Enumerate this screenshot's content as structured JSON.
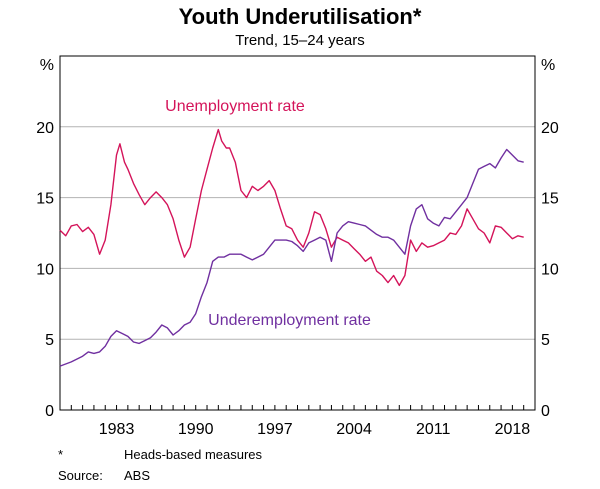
{
  "chart_data": {
    "type": "line",
    "title": "Youth Underutilisation*",
    "subtitle": "Trend, 15–24 years",
    "ylabel_left": "%",
    "ylabel_right": "%",
    "ylim": [
      0,
      25
    ],
    "yticks": [
      0,
      5,
      10,
      15,
      20
    ],
    "xlim": [
      1978,
      2020
    ],
    "xticks": [
      1983,
      1990,
      1997,
      2004,
      2011,
      2018
    ],
    "grid": true,
    "series": [
      {
        "name": "Unemployment rate",
        "color": "#d4145a",
        "x": [
          1978.0,
          1978.5,
          1979.0,
          1979.5,
          1980.0,
          1980.5,
          1981.0,
          1981.5,
          1982.0,
          1982.5,
          1983.0,
          1983.3,
          1983.7,
          1984.0,
          1984.5,
          1985.0,
          1985.5,
          1986.0,
          1986.5,
          1987.0,
          1987.5,
          1988.0,
          1988.5,
          1989.0,
          1989.5,
          1990.0,
          1990.5,
          1991.0,
          1991.5,
          1992.0,
          1992.3,
          1992.7,
          1993.0,
          1993.5,
          1994.0,
          1994.5,
          1995.0,
          1995.5,
          1996.0,
          1996.5,
          1997.0,
          1997.5,
          1998.0,
          1998.5,
          1999.0,
          1999.5,
          2000.0,
          2000.5,
          2001.0,
          2001.5,
          2002.0,
          2002.5,
          2003.0,
          2003.5,
          2004.0,
          2004.5,
          2005.0,
          2005.5,
          2006.0,
          2006.5,
          2007.0,
          2007.5,
          2008.0,
          2008.5,
          2009.0,
          2009.5,
          2010.0,
          2010.5,
          2011.0,
          2011.5,
          2012.0,
          2012.5,
          2013.0,
          2013.5,
          2014.0,
          2014.5,
          2015.0,
          2015.5,
          2016.0,
          2016.5,
          2017.0,
          2017.5,
          2018.0,
          2018.5,
          2019.0
        ],
        "values": [
          12.7,
          12.3,
          13.0,
          13.1,
          12.6,
          12.9,
          12.4,
          11.0,
          12.0,
          14.5,
          18.0,
          18.8,
          17.5,
          17.0,
          16.0,
          15.2,
          14.5,
          15.0,
          15.4,
          15.0,
          14.5,
          13.5,
          12.0,
          10.8,
          11.5,
          13.5,
          15.5,
          17.0,
          18.5,
          19.8,
          19.0,
          18.5,
          18.5,
          17.5,
          15.5,
          15.0,
          15.8,
          15.5,
          15.8,
          16.2,
          15.5,
          14.2,
          13.0,
          12.8,
          12.0,
          11.5,
          12.5,
          14.0,
          13.8,
          12.8,
          11.5,
          12.2,
          12.0,
          11.8,
          11.4,
          11.0,
          10.5,
          10.8,
          9.8,
          9.5,
          9.0,
          9.5,
          8.8,
          9.5,
          12.0,
          11.2,
          11.8,
          11.5,
          11.6,
          11.8,
          12.0,
          12.5,
          12.4,
          13.0,
          14.2,
          13.5,
          12.8,
          12.5,
          11.8,
          13.0,
          12.9,
          12.5,
          12.1,
          12.3,
          12.2
        ]
      },
      {
        "name": "Underemployment rate",
        "color": "#7030a0",
        "x": [
          1978.0,
          1979.0,
          1980.0,
          1980.5,
          1981.0,
          1981.5,
          1982.0,
          1982.5,
          1983.0,
          1983.5,
          1984.0,
          1984.5,
          1985.0,
          1985.5,
          1986.0,
          1986.5,
          1987.0,
          1987.5,
          1988.0,
          1988.5,
          1989.0,
          1989.5,
          1990.0,
          1990.5,
          1991.0,
          1991.5,
          1992.0,
          1992.5,
          1993.0,
          1993.5,
          1994.0,
          1994.5,
          1995.0,
          1995.5,
          1996.0,
          1996.5,
          1997.0,
          1997.5,
          1998.0,
          1998.5,
          1999.0,
          1999.5,
          2000.0,
          2000.5,
          2001.0,
          2001.5,
          2002.0,
          2002.5,
          2003.0,
          2003.5,
          2004.0,
          2004.5,
          2005.0,
          2005.5,
          2006.0,
          2006.5,
          2007.0,
          2007.5,
          2008.0,
          2008.5,
          2009.0,
          2009.5,
          2010.0,
          2010.5,
          2011.0,
          2011.5,
          2012.0,
          2012.5,
          2013.0,
          2013.5,
          2014.0,
          2014.5,
          2015.0,
          2015.5,
          2016.0,
          2016.5,
          2017.0,
          2017.5,
          2018.0,
          2018.5,
          2019.0
        ],
        "values": [
          3.1,
          3.4,
          3.8,
          4.1,
          4.0,
          4.1,
          4.5,
          5.2,
          5.6,
          5.4,
          5.2,
          4.8,
          4.7,
          4.9,
          5.1,
          5.5,
          6.0,
          5.8,
          5.3,
          5.6,
          6.0,
          6.2,
          6.8,
          8.0,
          9.0,
          10.5,
          10.8,
          10.8,
          11.0,
          11.0,
          11.0,
          10.8,
          10.6,
          10.8,
          11.0,
          11.5,
          12.0,
          12.0,
          12.0,
          11.9,
          11.6,
          11.2,
          11.8,
          12.0,
          12.2,
          12.0,
          10.5,
          12.5,
          13.0,
          13.3,
          13.2,
          13.1,
          13.0,
          12.7,
          12.4,
          12.2,
          12.2,
          12.0,
          11.5,
          11.0,
          13.0,
          14.2,
          14.5,
          13.5,
          13.2,
          13.0,
          13.6,
          13.5,
          14.0,
          14.5,
          15.0,
          16.0,
          17.0,
          17.2,
          17.4,
          17.1,
          17.8,
          18.4,
          18.0,
          17.6,
          17.5
        ]
      }
    ],
    "annotations": [
      {
        "text": "Unemployment rate",
        "series": 0
      },
      {
        "text": "Underemployment rate",
        "series": 1
      }
    ]
  },
  "footnotes": {
    "note_marker": "*",
    "note_text": "Heads-based measures",
    "source_label": "Source:",
    "source_text": "ABS"
  }
}
